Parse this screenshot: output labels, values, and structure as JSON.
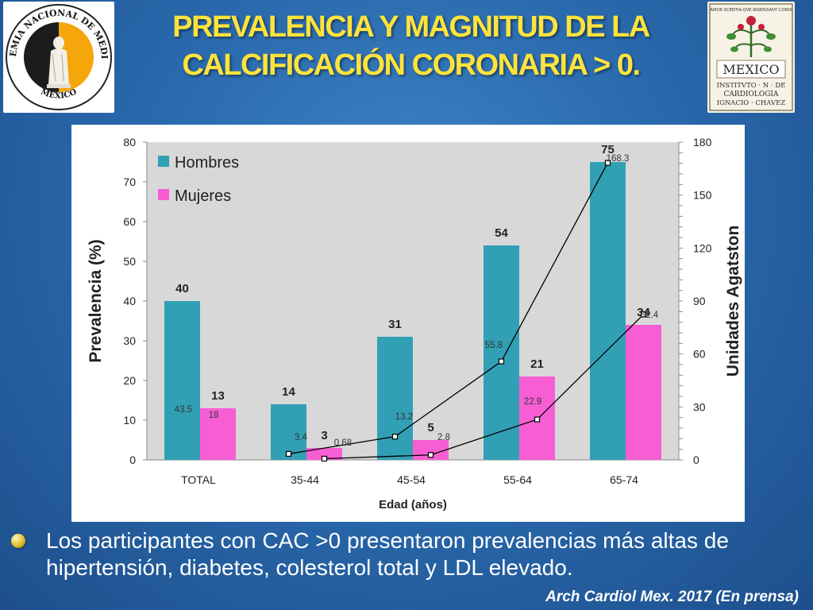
{
  "slide": {
    "title_line1": "PREVALENCIA Y MAGNITUD DE LA",
    "title_line2": "CALCIFICACIÓN CORONARIA > 0.",
    "bullet": "Los participantes con CAC >0 presentaron prevalencias más altas de hipertensión, diabetes, colesterol total y LDL elevado.",
    "citation": "Arch Cardiol Mex. 2017 (En prensa)"
  },
  "logos": {
    "left_text": "ACADEMIA NACIONAL DE MEDICINA",
    "left_bottom": "MEXICO",
    "right_top": "AMOR·SCENTIA·QVE·INSERVIANT·CORDI",
    "right_mid": "MEXICO",
    "right_lines": [
      "INSTITVTO · N · DE",
      "CARDIOLOGIA",
      "IGNACIO · CHAVEZ"
    ]
  },
  "chart_data": {
    "type": "bar",
    "categories": [
      "TOTAL",
      "35-44",
      "45-54",
      "55-64",
      "65-74"
    ],
    "series": [
      {
        "name": "Hombres",
        "values": [
          40,
          14,
          31,
          54,
          75
        ],
        "color": "#31a0b5"
      },
      {
        "name": "Mujeres",
        "values": [
          13,
          3,
          5,
          21,
          34
        ],
        "color": "#f75ed3"
      }
    ],
    "lines": [
      {
        "values": [
          43.5,
          3.4,
          13.2,
          55.8,
          168.3
        ],
        "axis": "right"
      },
      {
        "values": [
          18,
          0.68,
          2.8,
          22.9,
          82.4
        ],
        "axis": "right"
      }
    ],
    "xlabel": "Edad (años)",
    "ylabel": "Prevalencia (%)",
    "y2label": "Unidades Agatston",
    "ylim": [
      0,
      80
    ],
    "y2lim": [
      0,
      180
    ],
    "yticks": [
      0,
      10,
      20,
      30,
      40,
      50,
      60,
      70,
      80
    ],
    "y2ticks": [
      0,
      30,
      60,
      90,
      120,
      150,
      180
    ],
    "legend_position": "top-left",
    "plot_background": "#d8d8d8",
    "line_color": "#000000"
  }
}
